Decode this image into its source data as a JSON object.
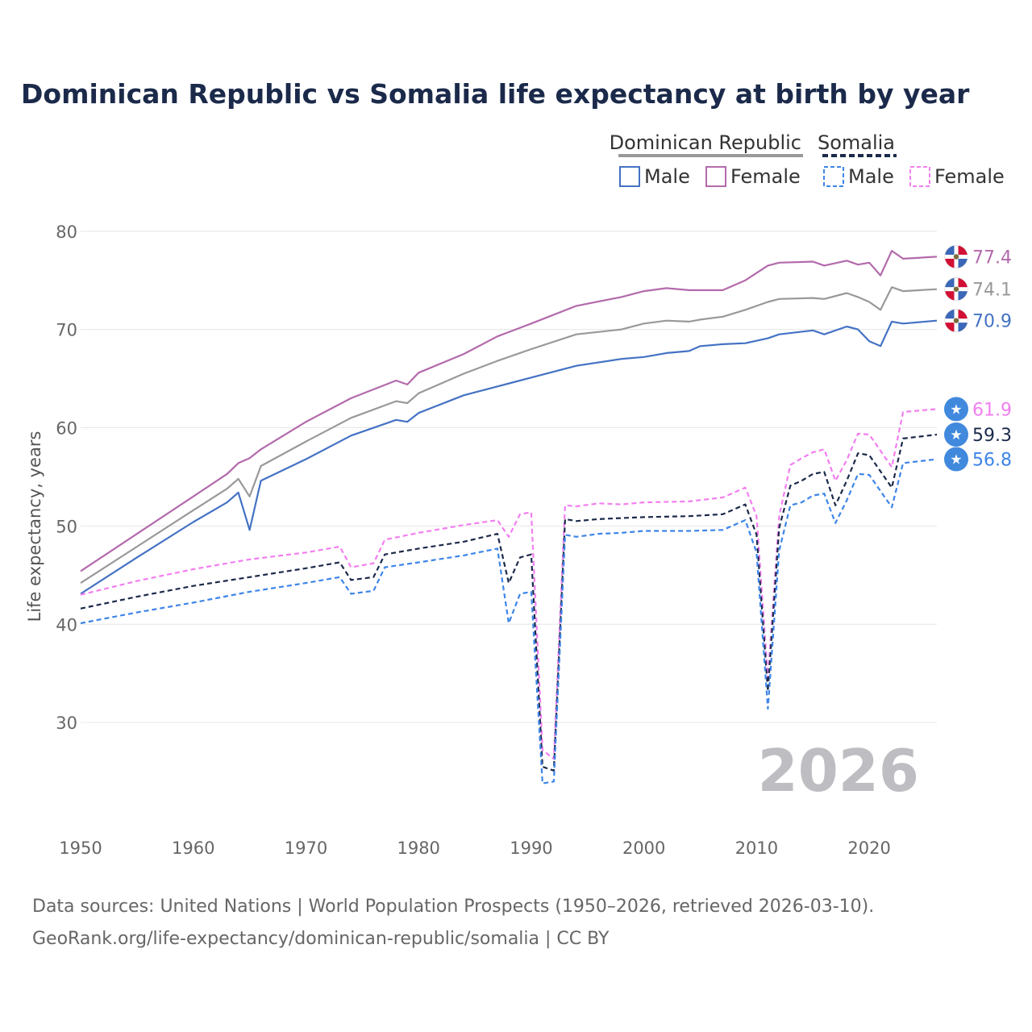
{
  "chart_data": {
    "type": "line",
    "title": "Dominican Republic vs Somalia life expectancy at birth by year",
    "ylabel": "Life expectancy, years",
    "xlabel": "",
    "xlim": [
      1950,
      2026
    ],
    "ylim": [
      20,
      84
    ],
    "yticks": [
      30,
      40,
      50,
      60,
      70,
      80
    ],
    "xticks": [
      1950,
      1960,
      1970,
      1980,
      1990,
      2000,
      2010,
      2020
    ],
    "current_year": "2026",
    "legend": {
      "group1": "Dominican Republic",
      "group2": "Somalia",
      "male": "Male",
      "female": "Female"
    },
    "series": [
      {
        "name": "Dominican Republic — Female",
        "country": "Dominican Republic",
        "color": "#b36aab",
        "dashed": false,
        "end_label": "77.4",
        "marker": "flag",
        "points": [
          [
            1950,
            45.4
          ],
          [
            1955,
            49.2
          ],
          [
            1960,
            53.0
          ],
          [
            1963,
            55.3
          ],
          [
            1964,
            56.4
          ],
          [
            1965,
            56.9
          ],
          [
            1966,
            57.8
          ],
          [
            1970,
            60.6
          ],
          [
            1974,
            63.0
          ],
          [
            1978,
            64.8
          ],
          [
            1979,
            64.4
          ],
          [
            1980,
            65.6
          ],
          [
            1984,
            67.5
          ],
          [
            1987,
            69.3
          ],
          [
            1990,
            70.6
          ],
          [
            1994,
            72.4
          ],
          [
            1998,
            73.3
          ],
          [
            2000,
            73.9
          ],
          [
            2002,
            74.2
          ],
          [
            2004,
            74.0
          ],
          [
            2007,
            74.0
          ],
          [
            2009,
            75.0
          ],
          [
            2011,
            76.5
          ],
          [
            2012,
            76.8
          ],
          [
            2015,
            76.9
          ],
          [
            2016,
            76.5
          ],
          [
            2018,
            77.0
          ],
          [
            2019,
            76.6
          ],
          [
            2020,
            76.8
          ],
          [
            2021,
            75.5
          ],
          [
            2022,
            78.0
          ],
          [
            2023,
            77.2
          ],
          [
            2026,
            77.4
          ]
        ]
      },
      {
        "name": "Dominican Republic — Total",
        "country": "Dominican Republic",
        "color": "#999999",
        "dashed": false,
        "end_label": "74.1",
        "marker": "flag",
        "points": [
          [
            1950,
            44.2
          ],
          [
            1955,
            47.9
          ],
          [
            1960,
            51.6
          ],
          [
            1963,
            53.8
          ],
          [
            1964,
            54.8
          ],
          [
            1965,
            53.0
          ],
          [
            1966,
            56.1
          ],
          [
            1970,
            58.6
          ],
          [
            1974,
            61.0
          ],
          [
            1978,
            62.7
          ],
          [
            1979,
            62.5
          ],
          [
            1980,
            63.5
          ],
          [
            1984,
            65.5
          ],
          [
            1987,
            66.8
          ],
          [
            1990,
            68.0
          ],
          [
            1994,
            69.5
          ],
          [
            1998,
            70.0
          ],
          [
            2000,
            70.6
          ],
          [
            2002,
            70.9
          ],
          [
            2004,
            70.8
          ],
          [
            2005,
            71.0
          ],
          [
            2007,
            71.3
          ],
          [
            2009,
            72.0
          ],
          [
            2011,
            72.8
          ],
          [
            2012,
            73.1
          ],
          [
            2015,
            73.2
          ],
          [
            2016,
            73.1
          ],
          [
            2018,
            73.7
          ],
          [
            2019,
            73.3
          ],
          [
            2020,
            72.8
          ],
          [
            2021,
            72.0
          ],
          [
            2022,
            74.3
          ],
          [
            2023,
            73.9
          ],
          [
            2026,
            74.1
          ]
        ]
      },
      {
        "name": "Dominican Republic — Male",
        "country": "Dominican Republic",
        "color": "#4472c4",
        "dashed": false,
        "end_label": "70.9",
        "marker": "flag",
        "points": [
          [
            1950,
            43.1
          ],
          [
            1955,
            46.8
          ],
          [
            1960,
            50.4
          ],
          [
            1963,
            52.4
          ],
          [
            1964,
            53.4
          ],
          [
            1965,
            49.6
          ],
          [
            1966,
            54.6
          ],
          [
            1970,
            56.8
          ],
          [
            1974,
            59.2
          ],
          [
            1978,
            60.8
          ],
          [
            1979,
            60.6
          ],
          [
            1980,
            61.5
          ],
          [
            1984,
            63.3
          ],
          [
            1987,
            64.2
          ],
          [
            1990,
            65.1
          ],
          [
            1994,
            66.3
          ],
          [
            1998,
            67.0
          ],
          [
            2000,
            67.2
          ],
          [
            2002,
            67.6
          ],
          [
            2004,
            67.8
          ],
          [
            2005,
            68.3
          ],
          [
            2007,
            68.5
          ],
          [
            2009,
            68.6
          ],
          [
            2011,
            69.1
          ],
          [
            2012,
            69.5
          ],
          [
            2015,
            69.9
          ],
          [
            2016,
            69.5
          ],
          [
            2018,
            70.3
          ],
          [
            2019,
            70.0
          ],
          [
            2020,
            68.8
          ],
          [
            2021,
            68.3
          ],
          [
            2022,
            70.8
          ],
          [
            2023,
            70.6
          ],
          [
            2026,
            70.9
          ]
        ]
      },
      {
        "name": "Somalia — Female",
        "country": "Somalia",
        "color": "#f27ef0",
        "dashed": true,
        "end_label": "61.9",
        "marker": "star",
        "points": [
          [
            1950,
            43.0
          ],
          [
            1955,
            44.4
          ],
          [
            1960,
            45.6
          ],
          [
            1965,
            46.6
          ],
          [
            1970,
            47.3
          ],
          [
            1973,
            47.9
          ],
          [
            1974,
            45.8
          ],
          [
            1976,
            46.2
          ],
          [
            1977,
            48.6
          ],
          [
            1980,
            49.3
          ],
          [
            1984,
            50.1
          ],
          [
            1987,
            50.6
          ],
          [
            1988,
            48.9
          ],
          [
            1989,
            51.2
          ],
          [
            1990,
            51.4
          ],
          [
            1991,
            27.2
          ],
          [
            1992,
            26.3
          ],
          [
            1993,
            52.1
          ],
          [
            1994,
            52.0
          ],
          [
            1996,
            52.3
          ],
          [
            1998,
            52.2
          ],
          [
            2000,
            52.4
          ],
          [
            2004,
            52.5
          ],
          [
            2007,
            52.9
          ],
          [
            2009,
            53.9
          ],
          [
            2010,
            51.0
          ],
          [
            2011,
            34.5
          ],
          [
            2012,
            51.0
          ],
          [
            2013,
            56.2
          ],
          [
            2014,
            56.9
          ],
          [
            2015,
            57.5
          ],
          [
            2016,
            57.8
          ],
          [
            2017,
            54.6
          ],
          [
            2018,
            56.7
          ],
          [
            2019,
            59.4
          ],
          [
            2020,
            59.3
          ],
          [
            2022,
            56.0
          ],
          [
            2023,
            61.6
          ],
          [
            2026,
            61.9
          ]
        ]
      },
      {
        "name": "Somalia — Total",
        "country": "Somalia",
        "color": "#1b2a4a",
        "dashed": true,
        "end_label": "59.3",
        "marker": "star",
        "points": [
          [
            1950,
            41.6
          ],
          [
            1955,
            42.8
          ],
          [
            1960,
            43.9
          ],
          [
            1965,
            44.8
          ],
          [
            1970,
            45.7
          ],
          [
            1973,
            46.3
          ],
          [
            1974,
            44.5
          ],
          [
            1976,
            44.8
          ],
          [
            1977,
            47.1
          ],
          [
            1980,
            47.7
          ],
          [
            1984,
            48.4
          ],
          [
            1987,
            49.2
          ],
          [
            1988,
            44.2
          ],
          [
            1989,
            46.8
          ],
          [
            1990,
            47.1
          ],
          [
            1991,
            25.5
          ],
          [
            1992,
            25.1
          ],
          [
            1993,
            50.7
          ],
          [
            1994,
            50.5
          ],
          [
            1996,
            50.7
          ],
          [
            1998,
            50.8
          ],
          [
            2000,
            50.9
          ],
          [
            2004,
            51.0
          ],
          [
            2007,
            51.2
          ],
          [
            2009,
            52.2
          ],
          [
            2010,
            49.1
          ],
          [
            2011,
            33.2
          ],
          [
            2012,
            49.8
          ],
          [
            2013,
            54.1
          ],
          [
            2014,
            54.6
          ],
          [
            2015,
            55.3
          ],
          [
            2016,
            55.5
          ],
          [
            2017,
            52.1
          ],
          [
            2018,
            54.6
          ],
          [
            2019,
            57.4
          ],
          [
            2020,
            57.2
          ],
          [
            2022,
            53.9
          ],
          [
            2023,
            58.9
          ],
          [
            2026,
            59.3
          ]
        ]
      },
      {
        "name": "Somalia — Male",
        "country": "Somalia",
        "color": "#3d85e8",
        "dashed": true,
        "end_label": "56.8",
        "marker": "star",
        "points": [
          [
            1950,
            40.1
          ],
          [
            1955,
            41.2
          ],
          [
            1960,
            42.2
          ],
          [
            1965,
            43.3
          ],
          [
            1970,
            44.2
          ],
          [
            1973,
            44.8
          ],
          [
            1974,
            43.1
          ],
          [
            1976,
            43.4
          ],
          [
            1977,
            45.8
          ],
          [
            1980,
            46.3
          ],
          [
            1984,
            47.0
          ],
          [
            1987,
            47.7
          ],
          [
            1988,
            40.1
          ],
          [
            1989,
            43.1
          ],
          [
            1990,
            43.3
          ],
          [
            1991,
            23.8
          ],
          [
            1992,
            24.0
          ],
          [
            1993,
            49.1
          ],
          [
            1994,
            48.9
          ],
          [
            1996,
            49.2
          ],
          [
            1998,
            49.3
          ],
          [
            2000,
            49.5
          ],
          [
            2004,
            49.5
          ],
          [
            2007,
            49.6
          ],
          [
            2009,
            50.6
          ],
          [
            2010,
            47.3
          ],
          [
            2011,
            31.4
          ],
          [
            2012,
            47.5
          ],
          [
            2013,
            52.1
          ],
          [
            2014,
            52.4
          ],
          [
            2015,
            53.1
          ],
          [
            2016,
            53.3
          ],
          [
            2017,
            50.3
          ],
          [
            2018,
            52.6
          ],
          [
            2019,
            55.3
          ],
          [
            2020,
            55.2
          ],
          [
            2022,
            51.9
          ],
          [
            2023,
            56.4
          ],
          [
            2026,
            56.8
          ]
        ]
      }
    ]
  },
  "source": {
    "line1": "Data sources: United Nations | World Population Prospects (1950–2026, retrieved 2026-03-10).",
    "line2": "GeoRank.org/life-expectancy/dominican-republic/somalia | CC BY"
  }
}
